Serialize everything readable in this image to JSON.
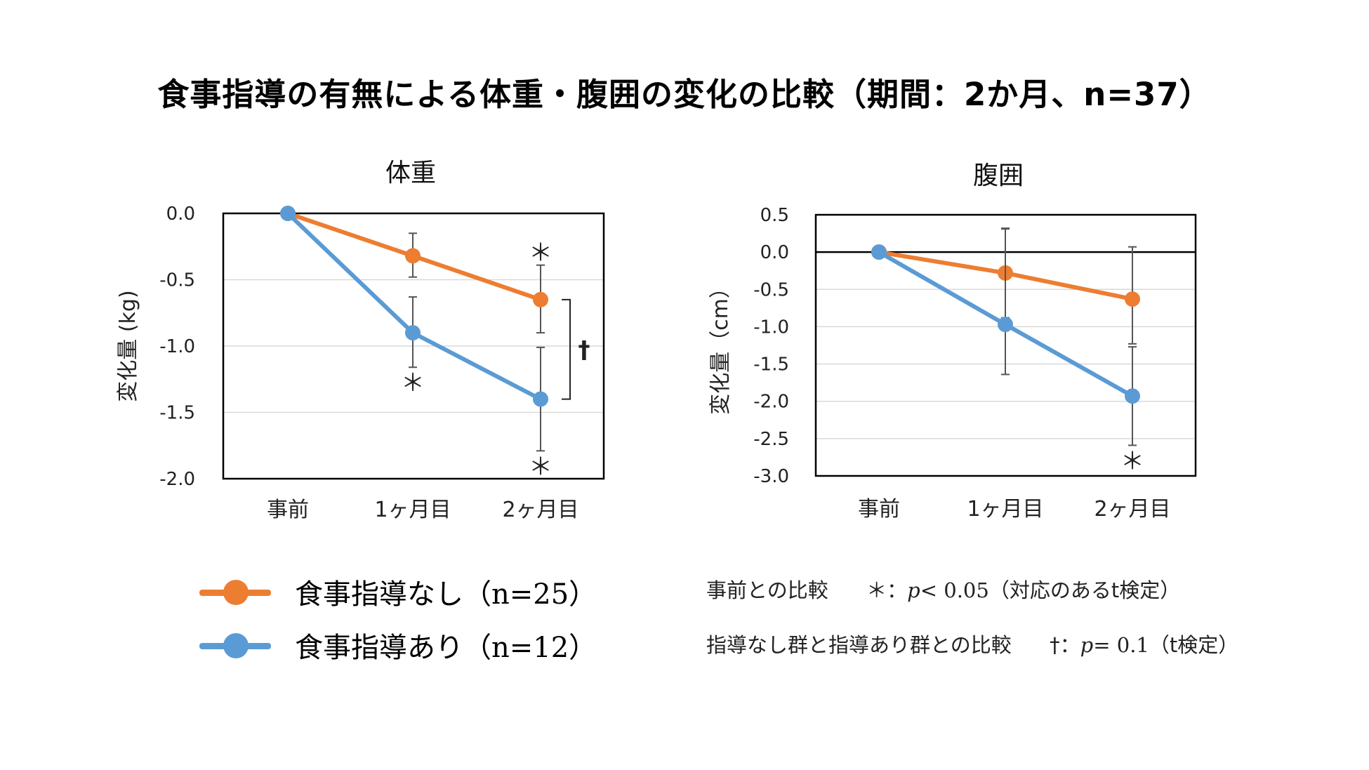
{
  "title": "食事指導の有無による体重・腹囲の変化の比較（期間：2か月、n=37）",
  "colors": {
    "no_guidance": "#ED7D31",
    "guidance": "#5B9BD5",
    "axis": "#000000",
    "grid": "#D9D9D9",
    "error": "#555555"
  },
  "chart_data": [
    {
      "type": "line",
      "title": "体重",
      "ylabel": "変化量 (kg)",
      "categories": [
        "事前",
        "1ヶ月目",
        "2ヶ月目"
      ],
      "ylim": [
        -2.0,
        0.0
      ],
      "yticks": [
        0.0,
        -0.5,
        -1.0,
        -1.5,
        -2.0
      ],
      "ytick_labels": [
        "0.0",
        "-0.5",
        "-1.0",
        "-1.5",
        "-2.0"
      ],
      "zero_line": false,
      "series": [
        {
          "name": "食事指導なし（n=25）",
          "color": "#ED7D31",
          "values": [
            0.0,
            -0.32,
            -0.65
          ],
          "error_lower": [
            0,
            0.16,
            0.25
          ],
          "error_upper": [
            0,
            0.17,
            0.26
          ],
          "sig_marks": [
            "",
            "",
            "＊"
          ],
          "sig_pos": [
            "",
            "",
            "above"
          ]
        },
        {
          "name": "食事指導あり（n=12）",
          "color": "#5B9BD5",
          "values": [
            0.0,
            -0.9,
            -1.4
          ],
          "error_lower": [
            0,
            0.26,
            0.39
          ],
          "error_upper": [
            0,
            0.27,
            0.39
          ],
          "sig_marks": [
            "",
            "＊",
            "＊"
          ],
          "sig_pos": [
            "",
            "below",
            "below"
          ]
        }
      ],
      "bracket": {
        "label": "†",
        "at": "2ヶ月目",
        "from": -0.65,
        "to": -1.4
      }
    },
    {
      "type": "line",
      "title": "腹囲",
      "ylabel": "変化量（cm）",
      "categories": [
        "事前",
        "1ヶ月目",
        "2ヶ月目"
      ],
      "ylim": [
        -3.0,
        0.5
      ],
      "yticks": [
        0.5,
        0.0,
        -0.5,
        -1.0,
        -1.5,
        -2.0,
        -2.5,
        -3.0
      ],
      "ytick_labels": [
        "0.5",
        "0.0",
        "-0.5",
        "-1.0",
        "-1.5",
        "-2.0",
        "-2.5",
        "-3.0"
      ],
      "zero_line": true,
      "series": [
        {
          "name": "食事指導なし（n=25）",
          "color": "#ED7D31",
          "values": [
            0.0,
            -0.28,
            -0.63
          ],
          "error_lower": [
            0,
            0.6,
            0.6
          ],
          "error_upper": [
            0,
            0.6,
            0.7
          ],
          "sig_marks": [
            "",
            "",
            ""
          ],
          "sig_pos": [
            "",
            "",
            ""
          ]
        },
        {
          "name": "食事指導あり（n=12）",
          "color": "#5B9BD5",
          "values": [
            0.0,
            -0.97,
            -1.93
          ],
          "error_lower": [
            0,
            0.67,
            0.66
          ],
          "error_upper": [
            0,
            1.28,
            0.66
          ],
          "sig_marks": [
            "",
            "",
            "＊"
          ],
          "sig_pos": [
            "",
            "",
            "below"
          ]
        }
      ]
    }
  ],
  "legend": [
    {
      "label": "食事指導なし",
      "n": "（n=25）",
      "color": "#ED7D31"
    },
    {
      "label": "食事指導あり",
      "n": "（n=12）",
      "color": "#5B9BD5"
    }
  ],
  "notes": {
    "note1": {
      "prefix": "事前との比較",
      "mark": "＊：",
      "p": "p",
      "rest": "< 0.05",
      "suffix": "（対応のあるt検定）"
    },
    "note2": {
      "prefix": "指導なし群と指導あり群との比較",
      "mark": "†：",
      "p": "p",
      "rest": "= 0.1",
      "suffix": "（t検定）"
    }
  }
}
